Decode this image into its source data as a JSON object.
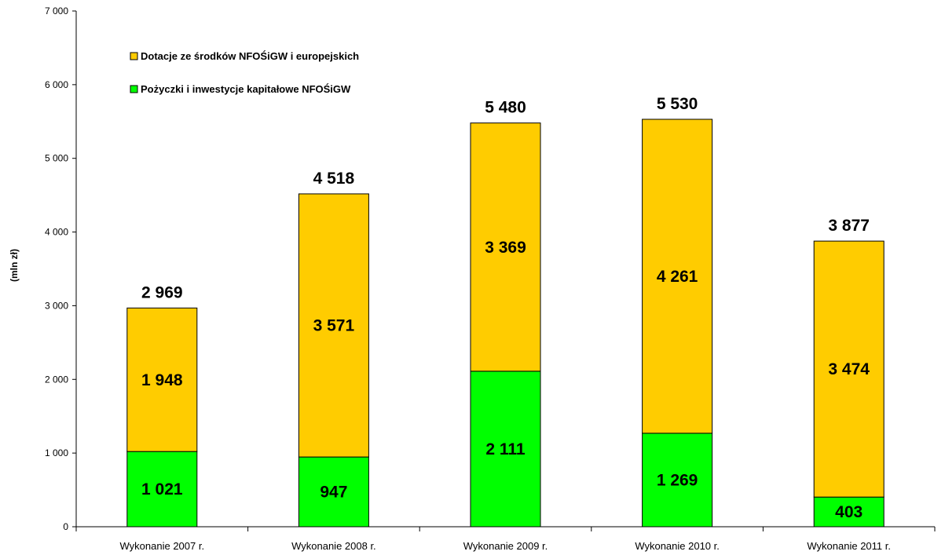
{
  "chart_data": {
    "type": "bar",
    "stacked": true,
    "title": "",
    "xlabel": "",
    "ylabel": "(mln zł)",
    "ylim": [
      0,
      7000
    ],
    "ytick_step": 1000,
    "ytick_labels": [
      "0",
      "1 000",
      "2 000",
      "3 000",
      "4 000",
      "5 000",
      "6 000",
      "7 000"
    ],
    "grid": false,
    "legend_position": "top-left",
    "categories": [
      "Wykonanie 2007 r.",
      "Wykonanie 2008 r.",
      "Wykonanie 2009 r.",
      "Wykonanie 2010 r.",
      "Wykonanie 2011 r."
    ],
    "series": [
      {
        "name": "Pożyczki i inwestycje kapitałowe NFOŚiGW",
        "color": "#00ff00",
        "values": [
          1021,
          947,
          2111,
          1269,
          403
        ],
        "labels": [
          "1 021",
          "947",
          "2 111",
          "1 269",
          "403"
        ]
      },
      {
        "name": "Dotacje ze środków NFOŚiGW i europejskich",
        "color": "#ffcc00",
        "values": [
          1948,
          3571,
          3369,
          4261,
          3474
        ],
        "labels": [
          "1 948",
          "3 571",
          "3 369",
          "4 261",
          "3 474"
        ]
      }
    ],
    "totals": [
      2969,
      4518,
      5480,
      5530,
      3877
    ],
    "total_labels": [
      "2 969",
      "4 518",
      "5 480",
      "5 530",
      "3 877"
    ],
    "legend_order": [
      1,
      0
    ]
  }
}
